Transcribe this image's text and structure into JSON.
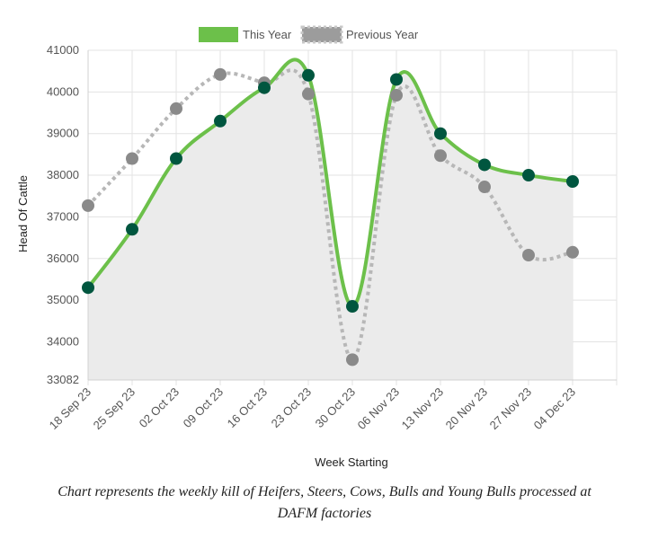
{
  "chart_data": {
    "type": "line",
    "title": "",
    "xlabel": "Week Starting",
    "ylabel": "Head Of Cattle",
    "categories": [
      "18 Sep 23",
      "25 Sep 23",
      "02 Oct 23",
      "09 Oct 23",
      "16 Oct 23",
      "23 Oct 23",
      "30 Oct 23",
      "06 Nov 23",
      "13 Nov 23",
      "20 Nov 23",
      "27 Nov 23",
      "04 Dec 23"
    ],
    "series": [
      {
        "name": "This Year",
        "values": [
          35300,
          36700,
          38400,
          39300,
          40100,
          40400,
          34850,
          40300,
          39000,
          38250,
          38000,
          37850
        ],
        "line_color": "#6cc04a",
        "point_color": "#00563f",
        "style": "solid",
        "fill": "#ebebeb"
      },
      {
        "name": "Previous Year",
        "values": [
          37270,
          38400,
          39600,
          40420,
          40220,
          39950,
          33570,
          39920,
          38470,
          37720,
          36080,
          36150
        ],
        "line_color": "#b7b7b7",
        "point_color": "#8a8a8a",
        "style": "dotted"
      }
    ],
    "ylim": [
      33082,
      41000
    ],
    "yticks": [
      33082,
      34000,
      35000,
      36000,
      37000,
      38000,
      39000,
      40000,
      41000
    ],
    "grid": true,
    "legend_position": "top"
  },
  "caption": {
    "line1": "Chart represents the weekly kill of Heifers, Steers, Cows, Bulls and Young Bulls processed at",
    "line2": "DAFM factories"
  }
}
